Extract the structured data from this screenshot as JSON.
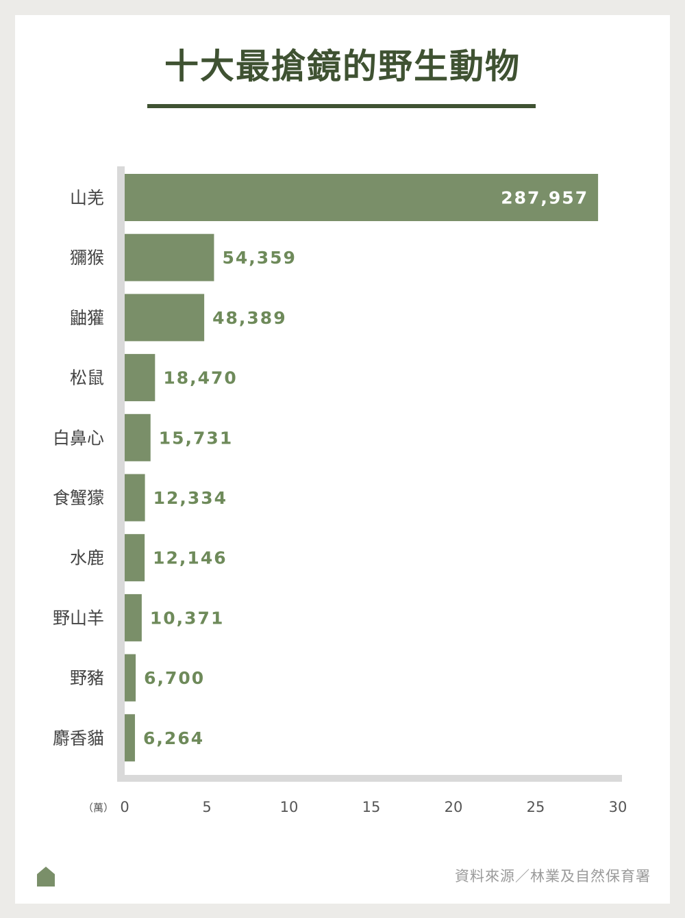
{
  "title": "十大最搶鏡的野生動物",
  "source": "資料來源／林業及自然保育署",
  "unit_label": "（萬）",
  "colors": {
    "bar": "#7a8f69",
    "title": "#3f5232",
    "axis": "#d9d9d9",
    "label_outside": "#6e8a5a",
    "label_inside": "#ffffff",
    "category_text": "#444444",
    "tick_text": "#555555"
  },
  "logo_icon": "house-icon",
  "chart_data": {
    "type": "bar",
    "orientation": "horizontal",
    "title": "十大最搶鏡的野生動物",
    "categories": [
      "山羌",
      "獼猴",
      "鼬獾",
      "松鼠",
      "白鼻心",
      "食蟹獴",
      "水鹿",
      "野山羊",
      "野豬",
      "麝香貓"
    ],
    "values": [
      287957,
      54359,
      48389,
      18470,
      15731,
      12334,
      12146,
      10371,
      6700,
      6264
    ],
    "value_labels": [
      "287,957",
      "54,359",
      "48,389",
      "18,470",
      "15,731",
      "12,334",
      "12,146",
      "10,371",
      "6,700",
      "6,264"
    ],
    "x_ticks": [
      "0",
      "5",
      "10",
      "15",
      "20",
      "25",
      "30"
    ],
    "xlim": [
      0,
      300000
    ],
    "x_unit": "（萬）",
    "grid": false,
    "legend": "none"
  }
}
